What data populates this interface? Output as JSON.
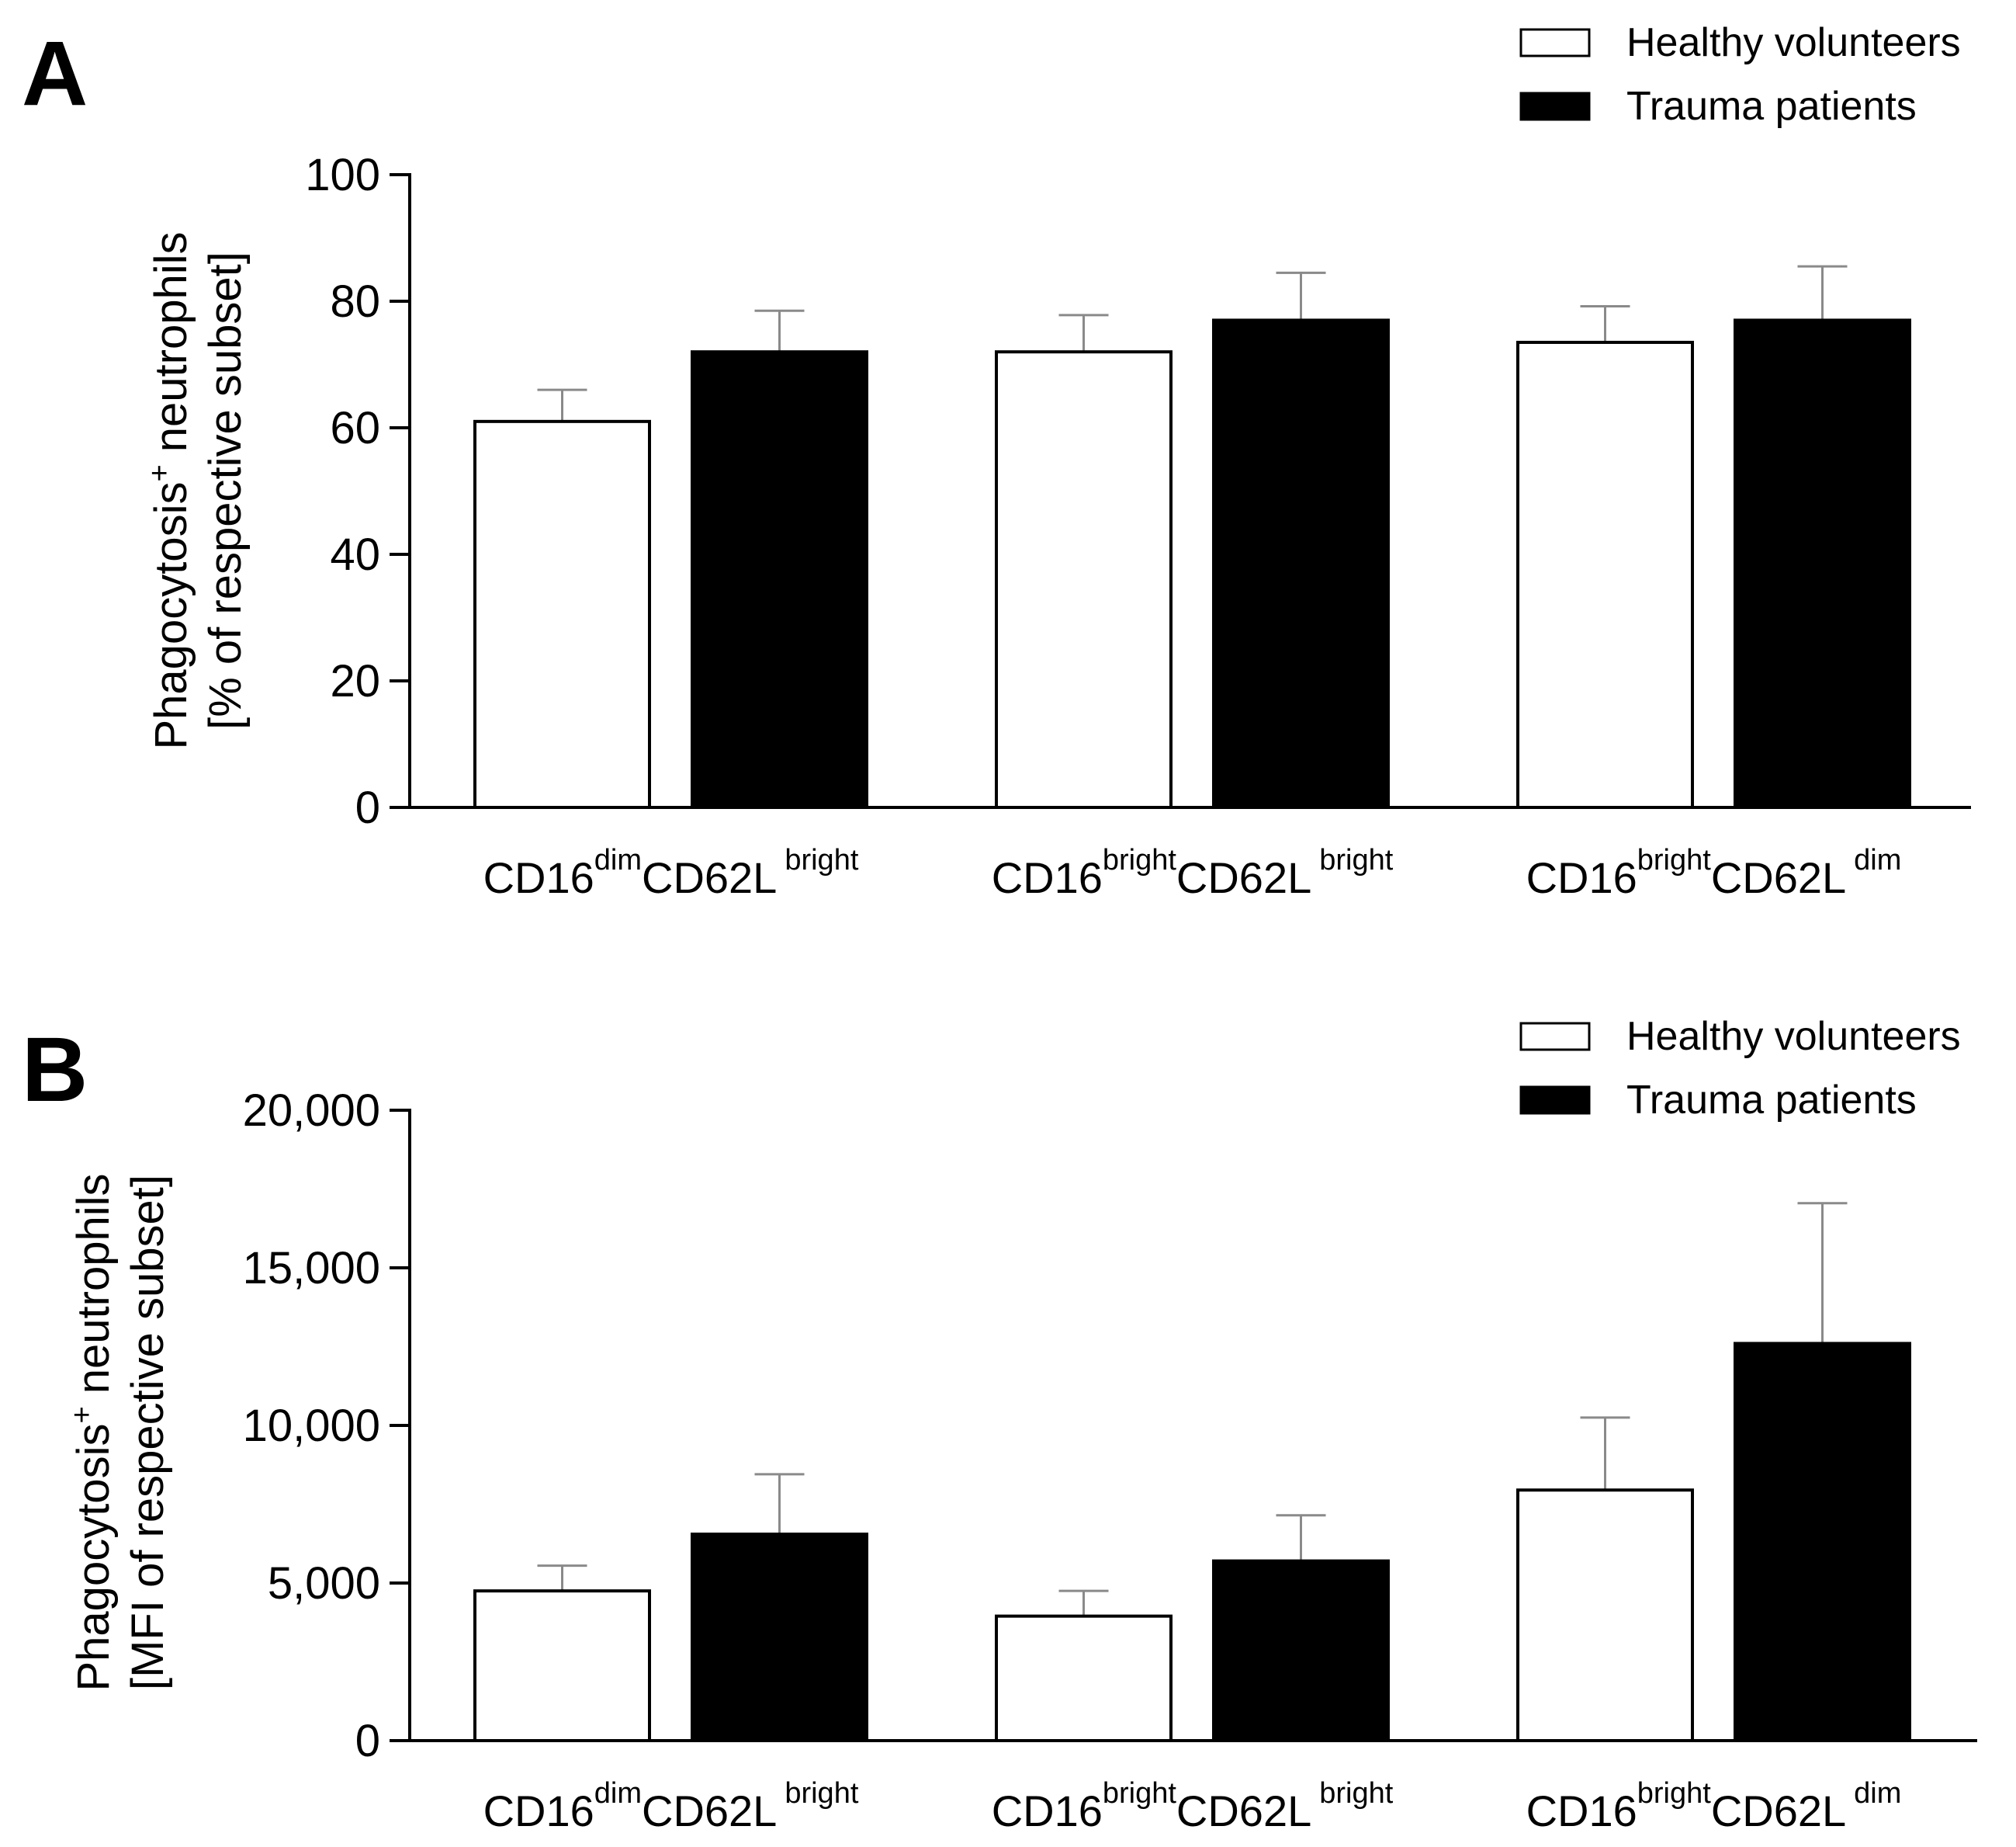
{
  "legend_labels": [
    "Healthy volunteers",
    "Trauma patients"
  ],
  "chart_data": [
    {
      "type": "bar",
      "panel_label": "A",
      "ylabel_lines": [
        "Phagocytosis",
        "+",
        " neutrophils",
        "[% of respective subset]"
      ],
      "categories": [
        {
          "base1": "CD16",
          "sup1": "dim",
          "base2": "CD62L",
          "sup2": "bright"
        },
        {
          "base1": "CD16",
          "sup1": "bright",
          "base2": "CD62L",
          "sup2": "bright"
        },
        {
          "base1": "CD16",
          "sup1": "bright",
          "base2": "CD62L",
          "sup2": "dim"
        }
      ],
      "yticks": [
        "0",
        "20",
        "40",
        "60",
        "80",
        "100"
      ],
      "ylim": [
        0,
        100
      ],
      "series": [
        {
          "name": "Healthy volunteers",
          "color": "#ffffff",
          "values": [
            61,
            72,
            73.5
          ],
          "errors": [
            5,
            5.8,
            5.7
          ]
        },
        {
          "name": "Trauma patients",
          "color": "#000000",
          "values": [
            72,
            77,
            77
          ],
          "errors": [
            6.5,
            7.5,
            8.5
          ]
        }
      ],
      "legend": "top-right",
      "grid": false
    },
    {
      "type": "bar",
      "panel_label": "B",
      "ylabel_lines": [
        "Phagocytosis",
        "+",
        " neutrophils",
        "[MFI of respective subset]"
      ],
      "categories": [
        {
          "base1": "CD16",
          "sup1": "dim",
          "base2": "CD62L",
          "sup2": "bright"
        },
        {
          "base1": "CD16",
          "sup1": "bright",
          "base2": "CD62L",
          "sup2": "bright"
        },
        {
          "base1": "CD16",
          "sup1": "bright",
          "base2": "CD62L",
          "sup2": "dim"
        }
      ],
      "yticks": [
        "0",
        "5,000",
        "10,000",
        "15,000",
        "20,000"
      ],
      "ylim": [
        0,
        20000
      ],
      "series": [
        {
          "name": "Healthy volunteers",
          "color": "#ffffff",
          "values": [
            4750,
            3950,
            7950
          ],
          "errors": [
            800,
            800,
            2300
          ]
        },
        {
          "name": "Trauma patients",
          "color": "#000000",
          "values": [
            6550,
            5700,
            12600
          ],
          "errors": [
            1900,
            1450,
            4450
          ]
        }
      ],
      "legend": "top-right",
      "grid": false
    }
  ]
}
